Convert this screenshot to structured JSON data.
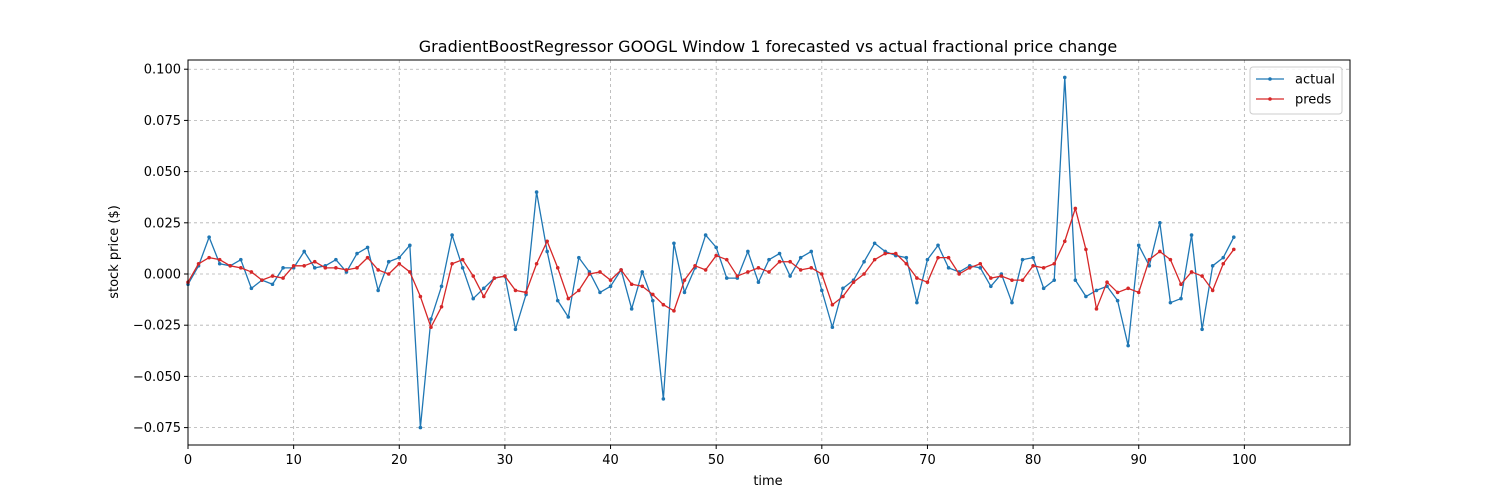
{
  "chart_data": {
    "type": "line",
    "title": "GradientBoostRegressor GOOGL Window 1 forecasted vs actual fractional price change",
    "xlabel": "time",
    "ylabel": "stock price ($)",
    "xlim": [
      0,
      110
    ],
    "ylim": [
      -0.0835,
      0.1045
    ],
    "xticks": [
      0,
      10,
      20,
      30,
      40,
      50,
      60,
      70,
      80,
      90,
      100
    ],
    "yticks": [
      -0.075,
      -0.05,
      -0.025,
      0.0,
      0.025,
      0.05,
      0.075,
      0.1
    ],
    "ytick_labels": [
      "−0.075",
      "−0.050",
      "−0.025",
      "0.000",
      "0.025",
      "0.050",
      "0.075",
      "0.100"
    ],
    "grid": true,
    "legend_position": "top-right",
    "series": [
      {
        "name": "actual",
        "color": "#1f77b4",
        "values": [
          -0.005,
          0.004,
          0.018,
          0.005,
          0.004,
          0.007,
          -0.007,
          -0.003,
          -0.005,
          0.003,
          0.003,
          0.011,
          0.003,
          0.004,
          0.007,
          0.001,
          0.01,
          0.013,
          -0.008,
          0.006,
          0.008,
          0.014,
          -0.075,
          -0.022,
          -0.006,
          0.019,
          0.003,
          -0.012,
          -0.007,
          -0.002,
          -0.001,
          -0.027,
          -0.01,
          0.04,
          0.011,
          -0.013,
          -0.021,
          0.008,
          0.001,
          -0.009,
          -0.006,
          0.002,
          -0.017,
          0.001,
          -0.013,
          -0.061,
          0.015,
          -0.009,
          0.003,
          0.019,
          0.013,
          -0.002,
          -0.002,
          0.011,
          -0.004,
          0.007,
          0.01,
          -0.001,
          0.008,
          0.011,
          -0.008,
          -0.026,
          -0.007,
          -0.003,
          0.006,
          0.015,
          0.011,
          0.009,
          0.008,
          -0.014,
          0.007,
          0.014,
          0.003,
          0.001,
          0.004,
          0.003,
          -0.006,
          0.0,
          -0.014,
          0.007,
          0.008,
          -0.007,
          -0.003,
          0.096,
          -0.003,
          -0.011,
          -0.008,
          -0.006,
          -0.013,
          -0.035,
          0.014,
          0.004,
          0.025,
          -0.014,
          -0.012,
          0.019,
          -0.027,
          0.004,
          0.008,
          0.018
        ]
      },
      {
        "name": "preds",
        "color": "#d62728",
        "values": [
          -0.004,
          0.005,
          0.008,
          0.007,
          0.004,
          0.003,
          0.001,
          -0.003,
          -0.001,
          -0.002,
          0.004,
          0.004,
          0.006,
          0.003,
          0.003,
          0.002,
          0.003,
          0.008,
          0.002,
          0.0,
          0.005,
          0.001,
          -0.011,
          -0.026,
          -0.016,
          0.005,
          0.007,
          -0.001,
          -0.011,
          -0.002,
          -0.001,
          -0.008,
          -0.009,
          0.005,
          0.016,
          0.003,
          -0.012,
          -0.008,
          0.0,
          0.001,
          -0.003,
          0.002,
          -0.005,
          -0.006,
          -0.01,
          -0.015,
          -0.018,
          -0.003,
          0.004,
          0.002,
          0.009,
          0.007,
          -0.001,
          0.001,
          0.003,
          0.001,
          0.006,
          0.006,
          0.002,
          0.003,
          0.0,
          -0.015,
          -0.011,
          -0.004,
          0.0,
          0.007,
          0.01,
          0.01,
          0.005,
          -0.002,
          -0.004,
          0.008,
          0.008,
          0.0,
          0.003,
          0.005,
          -0.002,
          -0.001,
          -0.003,
          -0.003,
          0.004,
          0.003,
          0.005,
          0.016,
          0.032,
          0.012,
          -0.017,
          -0.004,
          -0.009,
          -0.007,
          -0.009,
          0.007,
          0.011,
          0.007,
          -0.005,
          0.001,
          -0.001,
          -0.008,
          0.005,
          0.012
        ]
      }
    ]
  }
}
